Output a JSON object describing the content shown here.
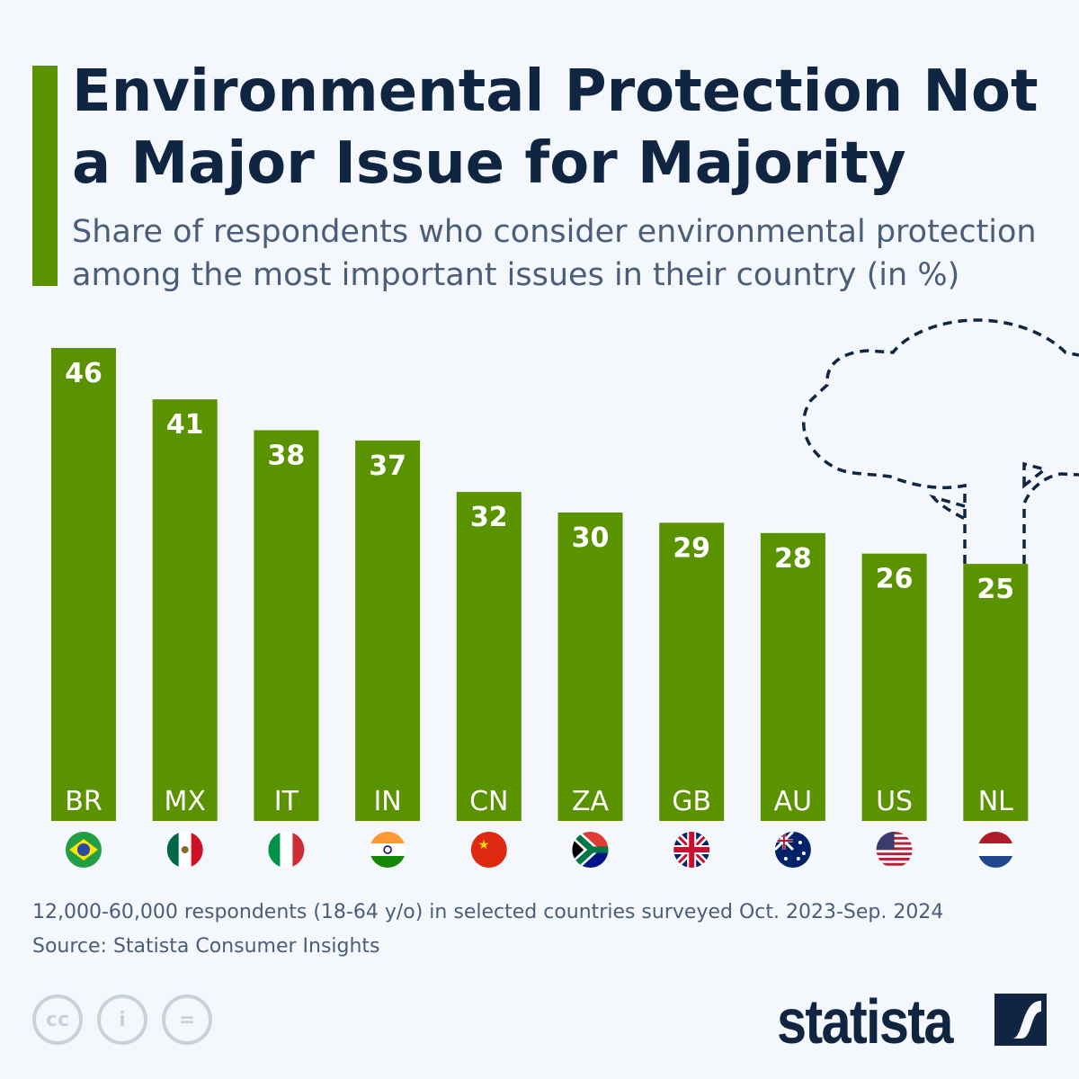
{
  "title": "Environmental Protection Not a Major Issue for Majority",
  "subtitle": "Share of respondents who consider environmental protection among the most important issues in their country (in %)",
  "chart_data": {
    "type": "bar",
    "categories": [
      "BR",
      "MX",
      "IT",
      "IN",
      "CN",
      "ZA",
      "GB",
      "AU",
      "US",
      "NL"
    ],
    "values": [
      46,
      41,
      38,
      37,
      32,
      30,
      29,
      28,
      26,
      25
    ],
    "ylim": [
      0,
      46
    ],
    "grid": false,
    "bar_color": "#5a9200",
    "label_color": "#ffffff"
  },
  "footer": {
    "note": "12,000-60,000 respondents (18-64 y/o) in selected countries surveyed Oct. 2023-Sep. 2024",
    "source": "Source: Statista Consumer Insights",
    "brand": "statista",
    "license_icons": [
      "cc",
      "i",
      "="
    ]
  },
  "colors": {
    "accent": "#5a9200",
    "title": "#0f2542",
    "text": "#4a5e7a"
  }
}
